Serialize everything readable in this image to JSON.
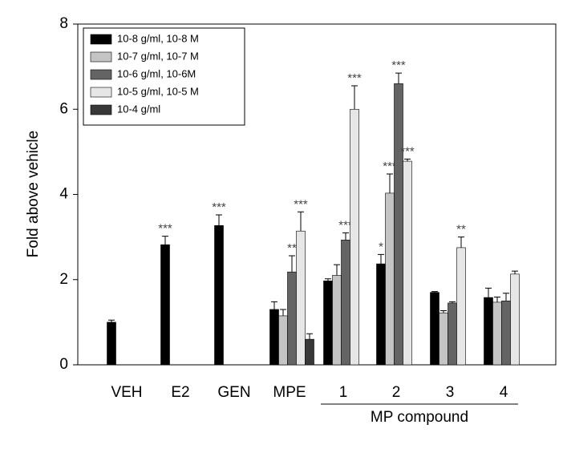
{
  "chart_data": {
    "type": "bar",
    "y_label": "Fold above vehicle",
    "x_group_label": "MP compound",
    "categories": [
      "VEH",
      "E2",
      "GEN",
      "MPE",
      "1",
      "2",
      "3",
      "4"
    ],
    "ylim": [
      0,
      8
    ],
    "yticks": [
      0,
      2,
      4,
      6,
      8
    ],
    "series": [
      {
        "name": "10-8 g/ml, 10-8 M",
        "color": "#000000",
        "values": [
          1.0,
          2.82,
          3.27,
          1.3,
          1.97,
          2.37,
          1.7,
          1.58
        ],
        "errors": [
          0.05,
          0.2,
          0.25,
          0.18,
          0.05,
          0.22,
          0.02,
          0.22
        ],
        "significance": [
          null,
          "***",
          "***",
          null,
          null,
          "*",
          null,
          null
        ]
      },
      {
        "name": "10-7 g/ml, 10-7 M",
        "color": "#c4c4c4",
        "values": [
          null,
          null,
          null,
          1.15,
          2.1,
          4.03,
          1.22,
          1.47
        ],
        "errors": [
          null,
          null,
          null,
          0.15,
          0.25,
          0.45,
          0.05,
          0.12
        ],
        "significance": [
          null,
          null,
          null,
          null,
          null,
          "***",
          null,
          null
        ]
      },
      {
        "name": "10-6 g/ml, 10-6M",
        "color": "#646464",
        "values": [
          null,
          null,
          null,
          2.18,
          2.93,
          6.6,
          1.45,
          1.5
        ],
        "errors": [
          null,
          null,
          null,
          0.38,
          0.17,
          0.25,
          0.03,
          0.18
        ],
        "significance": [
          null,
          null,
          null,
          "**",
          "***",
          "***",
          null,
          null
        ]
      },
      {
        "name": "10-5 g/ml, 10-5 M",
        "color": "#e6e6e6",
        "values": [
          null,
          null,
          null,
          3.14,
          6.0,
          4.78,
          2.75,
          2.13
        ],
        "errors": [
          null,
          null,
          null,
          0.45,
          0.55,
          0.05,
          0.25,
          0.07
        ],
        "significance": [
          null,
          null,
          null,
          "***",
          "***",
          "***",
          "**",
          null
        ]
      },
      {
        "name": "10-4 g/ml",
        "color": "#383838",
        "values": [
          null,
          null,
          null,
          0.6,
          null,
          null,
          null,
          null
        ],
        "errors": [
          null,
          null,
          null,
          0.13,
          null,
          null,
          null,
          null
        ],
        "significance": [
          null,
          null,
          null,
          null,
          null,
          null,
          null,
          null
        ]
      }
    ]
  }
}
